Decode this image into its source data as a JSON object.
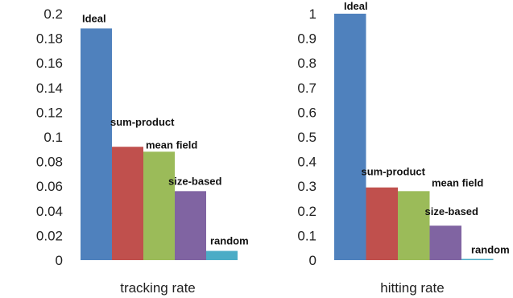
{
  "chart_data": [
    {
      "type": "bar",
      "xlabel": "tracking rate",
      "ylim": [
        0,
        0.2
      ],
      "yticks": [
        "0",
        "0.02",
        "0.04",
        "0.06",
        "0.08",
        "0.1",
        "0.12",
        "0.14",
        "0.16",
        "0.18",
        "0.2"
      ],
      "grid": false,
      "legend": "none",
      "bars": [
        {
          "label": "Ideal",
          "value": 0.188,
          "color": "#4F81BD"
        },
        {
          "label": "sum-product",
          "value": 0.092,
          "color": "#C0504D"
        },
        {
          "label": "mean field",
          "value": 0.088,
          "color": "#9BBB59"
        },
        {
          "label": "size-based",
          "value": 0.056,
          "color": "#8064A2"
        },
        {
          "label": "random",
          "value": 0.0075,
          "color": "#4BACC6"
        }
      ]
    },
    {
      "type": "bar",
      "xlabel": "hitting rate",
      "ylim": [
        0,
        1
      ],
      "yticks": [
        "0",
        "0.1",
        "0.2",
        "0.3",
        "0.4",
        "0.5",
        "0.6",
        "0.7",
        "0.8",
        "0.9",
        "1"
      ],
      "grid": false,
      "legend": "none",
      "bars": [
        {
          "label": "Ideal",
          "value": 1.0,
          "color": "#4F81BD"
        },
        {
          "label": "sum-product",
          "value": 0.295,
          "color": "#C0504D"
        },
        {
          "label": "mean field",
          "value": 0.28,
          "color": "#9BBB59"
        },
        {
          "label": "size-based",
          "value": 0.14,
          "color": "#8064A2"
        },
        {
          "label": "random",
          "value": 0.005,
          "color": "#4BACC6"
        }
      ]
    }
  ]
}
